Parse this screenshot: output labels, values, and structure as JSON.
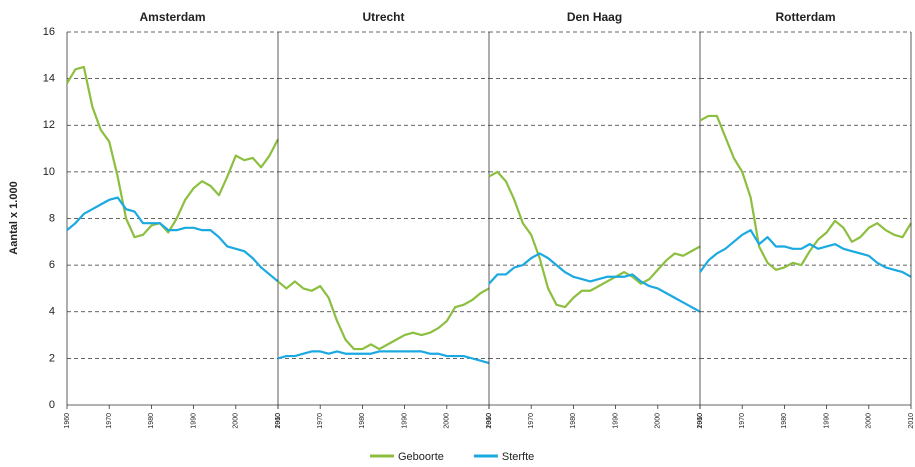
{
  "chart_data": [
    {
      "type": "line",
      "title": "Amsterdam",
      "ylabel": "Aantal x 1.000",
      "x": [
        1960,
        1962,
        1964,
        1966,
        1968,
        1970,
        1972,
        1974,
        1976,
        1978,
        1980,
        1982,
        1984,
        1986,
        1988,
        1990,
        1992,
        1994,
        1996,
        1998,
        2000,
        2002,
        2004,
        2006,
        2008,
        2010
      ],
      "xlim": [
        1960,
        2010
      ],
      "xticks": [
        1960,
        1970,
        1980,
        1990,
        2000,
        2010
      ],
      "ylim": [
        0,
        16
      ],
      "yticks": [
        0,
        2,
        4,
        6,
        8,
        10,
        12,
        14,
        16
      ],
      "grid": true,
      "series": [
        {
          "name": "Geboorte",
          "color": "#8cbf3f",
          "values": [
            13.8,
            14.4,
            14.5,
            12.8,
            11.8,
            11.3,
            9.8,
            8.0,
            7.2,
            7.3,
            7.7,
            7.8,
            7.4,
            8.0,
            8.8,
            9.3,
            9.6,
            9.4,
            9.0,
            9.8,
            10.7,
            10.5,
            10.6,
            10.2,
            10.7,
            11.4
          ]
        },
        {
          "name": "Sterfte",
          "color": "#1ba9e1",
          "values": [
            7.5,
            7.8,
            8.2,
            8.4,
            8.6,
            8.8,
            8.9,
            8.4,
            8.3,
            7.8,
            7.8,
            7.8,
            7.5,
            7.5,
            7.6,
            7.6,
            7.5,
            7.5,
            7.2,
            6.8,
            6.7,
            6.6,
            6.3,
            5.9,
            5.6,
            5.3
          ]
        }
      ]
    },
    {
      "type": "line",
      "title": "Utrecht",
      "x": [
        1960,
        1962,
        1964,
        1966,
        1968,
        1970,
        1972,
        1974,
        1976,
        1978,
        1980,
        1982,
        1984,
        1986,
        1988,
        1990,
        1992,
        1994,
        1996,
        1998,
        2000,
        2002,
        2004,
        2006,
        2008,
        2010
      ],
      "xlim": [
        1960,
        2010
      ],
      "xticks": [
        1960,
        1970,
        1980,
        1990,
        2000,
        2010
      ],
      "ylim": [
        0,
        16
      ],
      "yticks": [
        0,
        2,
        4,
        6,
        8,
        10,
        12,
        14,
        16
      ],
      "grid": true,
      "series": [
        {
          "name": "Geboorte",
          "color": "#8cbf3f",
          "values": [
            5.3,
            5.0,
            5.3,
            5.0,
            4.9,
            5.1,
            4.6,
            3.6,
            2.8,
            2.4,
            2.4,
            2.6,
            2.4,
            2.6,
            2.8,
            3.0,
            3.1,
            3.0,
            3.1,
            3.3,
            3.6,
            4.2,
            4.3,
            4.5,
            4.8,
            5.0
          ]
        },
        {
          "name": "Sterfte",
          "color": "#1ba9e1",
          "values": [
            2.0,
            2.1,
            2.1,
            2.2,
            2.3,
            2.3,
            2.2,
            2.3,
            2.2,
            2.2,
            2.2,
            2.2,
            2.3,
            2.3,
            2.3,
            2.3,
            2.3,
            2.3,
            2.2,
            2.2,
            2.1,
            2.1,
            2.1,
            2.0,
            1.9,
            1.8
          ]
        }
      ]
    },
    {
      "type": "line",
      "title": "Den Haag",
      "x": [
        1960,
        1962,
        1964,
        1966,
        1968,
        1970,
        1972,
        1974,
        1976,
        1978,
        1980,
        1982,
        1984,
        1986,
        1988,
        1990,
        1992,
        1994,
        1996,
        1998,
        2000,
        2002,
        2004,
        2006,
        2008,
        2010
      ],
      "xlim": [
        1960,
        2010
      ],
      "xticks": [
        1960,
        1970,
        1980,
        1990,
        2000,
        2010
      ],
      "ylim": [
        0,
        16
      ],
      "yticks": [
        0,
        2,
        4,
        6,
        8,
        10,
        12,
        14,
        16
      ],
      "grid": true,
      "series": [
        {
          "name": "Geboorte",
          "color": "#8cbf3f",
          "values": [
            9.8,
            10.0,
            9.6,
            8.8,
            7.8,
            7.3,
            6.3,
            5.0,
            4.3,
            4.2,
            4.6,
            4.9,
            4.9,
            5.1,
            5.3,
            5.5,
            5.7,
            5.5,
            5.2,
            5.4,
            5.8,
            6.2,
            6.5,
            6.4,
            6.6,
            6.8
          ]
        },
        {
          "name": "Sterfte",
          "color": "#1ba9e1",
          "values": [
            5.2,
            5.6,
            5.6,
            5.9,
            6.0,
            6.3,
            6.5,
            6.3,
            6.0,
            5.7,
            5.5,
            5.4,
            5.3,
            5.4,
            5.5,
            5.5,
            5.5,
            5.6,
            5.3,
            5.1,
            5.0,
            4.8,
            4.6,
            4.4,
            4.2,
            4.0
          ]
        }
      ]
    },
    {
      "type": "line",
      "title": "Rotterdam",
      "x": [
        1960,
        1962,
        1964,
        1966,
        1968,
        1970,
        1972,
        1974,
        1976,
        1978,
        1980,
        1982,
        1984,
        1986,
        1988,
        1990,
        1992,
        1994,
        1996,
        1998,
        2000,
        2002,
        2004,
        2006,
        2008,
        2010
      ],
      "xlim": [
        1960,
        2010
      ],
      "xticks": [
        1960,
        1970,
        1980,
        1990,
        2000,
        2010
      ],
      "ylim": [
        0,
        16
      ],
      "yticks": [
        0,
        2,
        4,
        6,
        8,
        10,
        12,
        14,
        16
      ],
      "grid": true,
      "series": [
        {
          "name": "Geboorte",
          "color": "#8cbf3f",
          "values": [
            12.2,
            12.4,
            12.4,
            11.5,
            10.6,
            10.0,
            8.9,
            6.8,
            6.1,
            5.8,
            5.9,
            6.1,
            6.0,
            6.6,
            7.1,
            7.4,
            7.9,
            7.6,
            7.0,
            7.2,
            7.6,
            7.8,
            7.5,
            7.3,
            7.2,
            7.8
          ]
        },
        {
          "name": "Sterfte",
          "color": "#1ba9e1",
          "values": [
            5.7,
            6.2,
            6.5,
            6.7,
            7.0,
            7.3,
            7.5,
            6.9,
            7.2,
            6.8,
            6.8,
            6.7,
            6.7,
            6.9,
            6.7,
            6.8,
            6.9,
            6.7,
            6.6,
            6.5,
            6.4,
            6.1,
            5.9,
            5.8,
            5.7,
            5.5
          ]
        }
      ]
    }
  ]
}
